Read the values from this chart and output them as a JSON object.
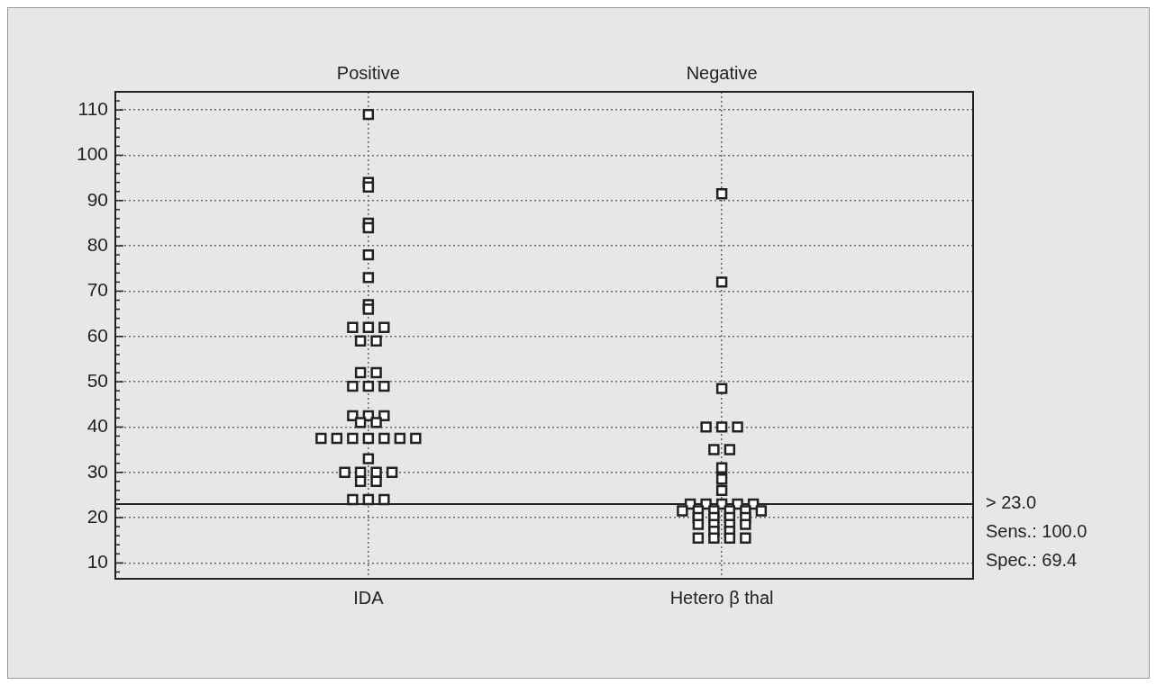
{
  "chart_data": {
    "type": "scatter",
    "categories": [
      "IDA",
      "Hetero β thal"
    ],
    "series": [
      {
        "color": "#222222",
        "x": [
          "IDA",
          "IDA",
          "IDA",
          "IDA",
          "IDA",
          "IDA",
          "IDA",
          "IDA",
          "IDA",
          "IDA",
          "IDA",
          "IDA",
          "IDA",
          "IDA",
          "IDA",
          "IDA",
          "IDA",
          "IDA",
          "IDA",
          "IDA",
          "IDA",
          "IDA",
          "IDA",
          "IDA",
          "IDA",
          "IDA",
          "IDA",
          "IDA",
          "IDA",
          "IDA",
          "IDA",
          "IDA",
          "IDA",
          "IDA",
          "IDA",
          "IDA",
          "IDA",
          "IDA",
          "IDA",
          "IDA",
          "IDA",
          "Hetero β thal",
          "Hetero β thal",
          "Hetero β thal",
          "Hetero β thal",
          "Hetero β thal",
          "Hetero β thal",
          "Hetero β thal",
          "Hetero β thal",
          "Hetero β thal",
          "Hetero β thal",
          "Hetero β thal",
          "Hetero β thal",
          "Hetero β thal",
          "Hetero β thal",
          "Hetero β thal",
          "Hetero β thal",
          "Hetero β thal",
          "Hetero β thal",
          "Hetero β thal",
          "Hetero β thal",
          "Hetero β thal",
          "Hetero β thal",
          "Hetero β thal",
          "Hetero β thal",
          "Hetero β thal",
          "Hetero β thal",
          "Hetero β thal",
          "Hetero β thal",
          "Hetero β thal",
          "Hetero β thal",
          "Hetero β thal",
          "Hetero β thal",
          "Hetero β thal",
          "Hetero β thal",
          "Hetero β thal",
          "Hetero β thal"
        ],
        "values": [
          109,
          94,
          93,
          85,
          84,
          78,
          73,
          67,
          66,
          62,
          62,
          62,
          59,
          59,
          52,
          52,
          49,
          49,
          49,
          42.5,
          42.5,
          42.5,
          41,
          41,
          37.5,
          37.5,
          37.5,
          37.5,
          37.5,
          37.5,
          37.5,
          33,
          30,
          30,
          30,
          30,
          28,
          28,
          24,
          24,
          24,
          91.5,
          72,
          48.5,
          40,
          40,
          40,
          35,
          35,
          31,
          28.5,
          26,
          23,
          23,
          23,
          23,
          23,
          21.5,
          21.5,
          21.5,
          21.5,
          21.5,
          21.5,
          20,
          20,
          20,
          20,
          18.5,
          18.5,
          18.5,
          18.5,
          17,
          17,
          15.5,
          15.5,
          15.5,
          15.5
        ]
      }
    ],
    "ylim": [
      6.5,
      114
    ],
    "yticks": [
      {
        "value": 8,
        "label": null
      },
      10,
      {
        "value": 12,
        "label": null
      },
      {
        "value": 14,
        "label": null
      },
      {
        "value": 16,
        "label": null
      },
      {
        "value": 18,
        "label": null
      },
      20,
      {
        "value": 22,
        "label": null
      },
      {
        "value": 24,
        "label": null
      },
      {
        "value": 26,
        "label": null
      },
      {
        "value": 28,
        "label": null
      },
      30,
      {
        "value": 32,
        "label": null
      },
      {
        "value": 34,
        "label": null
      },
      {
        "value": 36,
        "label": null
      },
      {
        "value": 38,
        "label": null
      },
      40,
      {
        "value": 42,
        "label": null
      },
      {
        "value": 44,
        "label": null
      },
      {
        "value": 46,
        "label": null
      },
      {
        "value": 48,
        "label": null
      },
      50,
      {
        "value": 52,
        "label": null
      },
      {
        "value": 54,
        "label": null
      },
      {
        "value": 56,
        "label": null
      },
      {
        "value": 58,
        "label": null
      },
      60,
      {
        "value": 62,
        "label": null
      },
      {
        "value": 64,
        "label": null
      },
      {
        "value": 66,
        "label": null
      },
      {
        "value": 68,
        "label": null
      },
      70,
      {
        "value": 72,
        "label": null
      },
      {
        "value": 74,
        "label": null
      },
      {
        "value": 76,
        "label": null
      },
      {
        "value": 78,
        "label": null
      },
      80,
      {
        "value": 82,
        "label": null
      },
      {
        "value": 84,
        "label": null
      },
      {
        "value": 86,
        "label": null
      },
      {
        "value": 88,
        "label": null
      },
      90,
      {
        "value": 92,
        "label": null
      },
      {
        "value": 94,
        "label": null
      },
      {
        "value": 96,
        "label": null
      },
      {
        "value": 98,
        "label": null
      },
      100,
      {
        "value": 102,
        "label": null
      },
      {
        "value": 104,
        "label": null
      },
      {
        "value": 106,
        "label": null
      },
      {
        "value": 108,
        "label": null
      },
      110,
      {
        "value": 112,
        "label": null
      }
    ],
    "grid": true,
    "marker": "square",
    "legend": false,
    "ref_lines": [
      {
        "axis": "y",
        "value": 23,
        "label": "> 23.0",
        "color": "#222222",
        "line_style": "solid"
      }
    ],
    "annotations": [
      "Positive",
      "Negative",
      "Sens.: 100.0",
      "Spec.: 69.4"
    ]
  }
}
